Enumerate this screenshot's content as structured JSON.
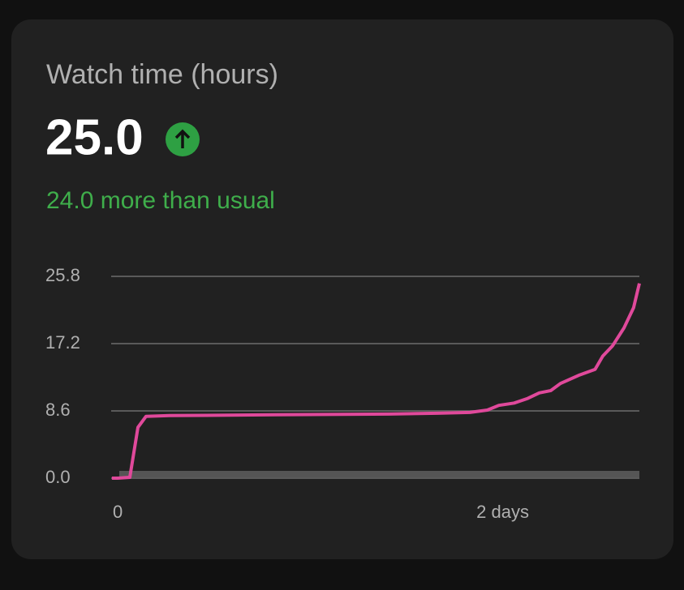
{
  "card": {
    "title": "Watch time (hours)",
    "value": "25.0",
    "delta": "24.0 more than usual"
  },
  "chart_data": {
    "type": "line",
    "x": [
      -0.03,
      0,
      0.063,
      0.105,
      0.147,
      0.27,
      0.82,
      1.41,
      1.66,
      1.83,
      1.92,
      1.98,
      2.06,
      2.13,
      2.19,
      2.25,
      2.3,
      2.4,
      2.48,
      2.52,
      2.57,
      2.63,
      2.68,
      2.71
    ],
    "series": [
      {
        "color": "#e0499b",
        "values": [
          0,
          0,
          0.1,
          6.5,
          7.9,
          8.0,
          8.1,
          8.2,
          8.3,
          8.4,
          8.7,
          9.3,
          9.6,
          10.2,
          10.9,
          11.2,
          12.1,
          13.2,
          13.9,
          15.6,
          16.9,
          19.2,
          21.8,
          24.9
        ]
      }
    ],
    "xlim": [
      -0.034,
      2.71
    ],
    "xticks": [
      0,
      {
        "value": 2,
        "label": "2 days"
      }
    ],
    "ylim": [
      0,
      25.8
    ],
    "yticks": [
      {
        "value": 0,
        "label": "0.0"
      },
      8.6,
      17.2,
      25.8
    ],
    "grid": true
  }
}
